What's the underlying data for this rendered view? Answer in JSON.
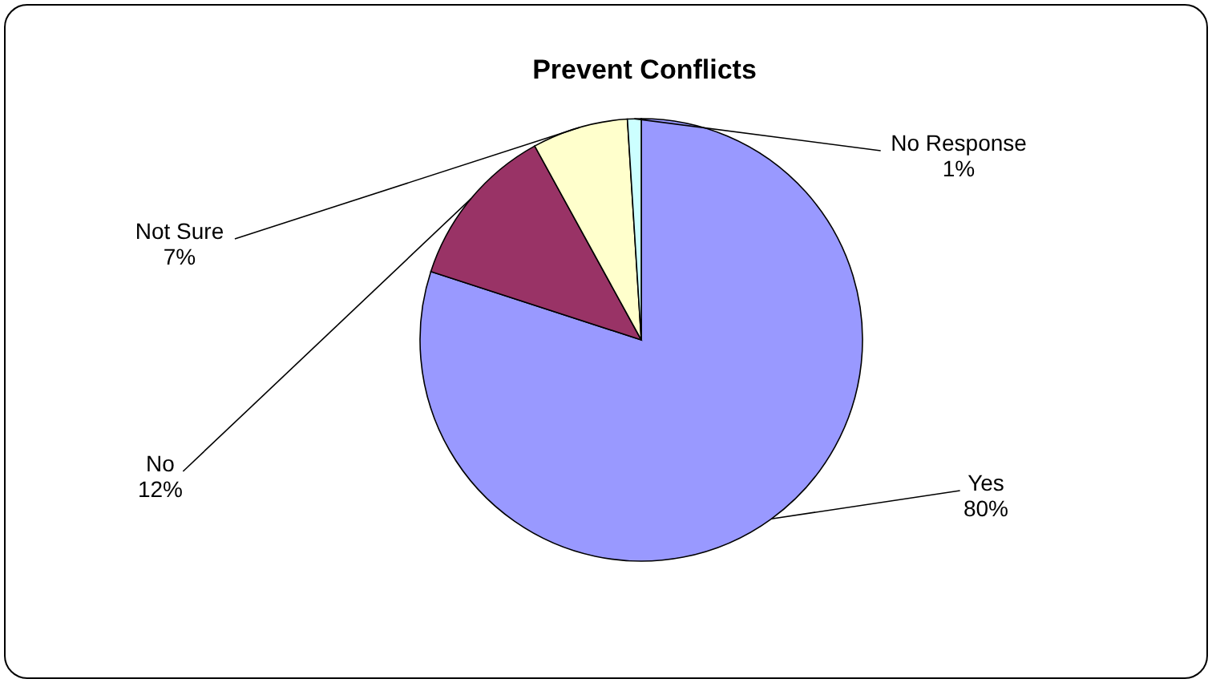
{
  "chart_data": {
    "type": "pie",
    "title": "Prevent Conflicts",
    "categories": [
      "Yes",
      "No",
      "Not Sure",
      "No Response"
    ],
    "values": [
      80,
      12,
      7,
      1
    ],
    "value_labels": [
      "80%",
      "12%",
      "7%",
      "1%"
    ],
    "colors": [
      "#9999ff",
      "#993366",
      "#ffffcc",
      "#ccffff"
    ]
  }
}
